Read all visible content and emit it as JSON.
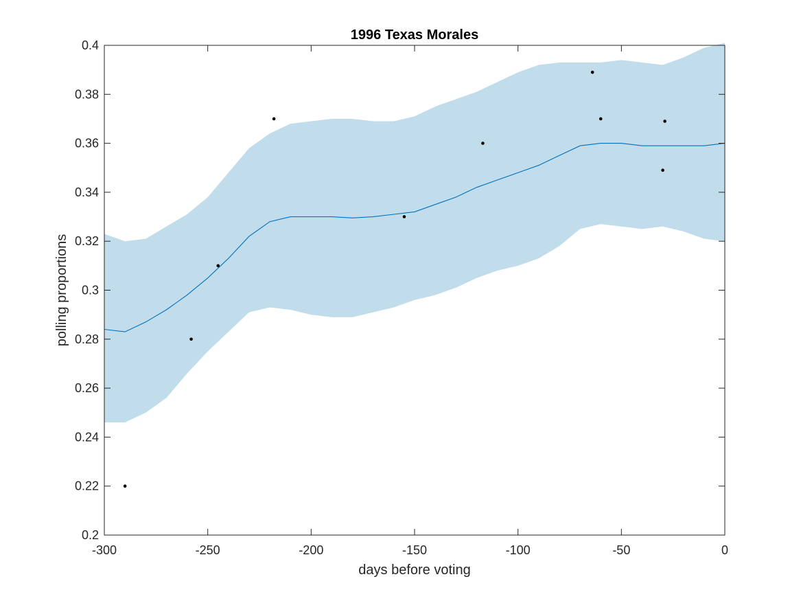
{
  "chart_data": {
    "type": "line",
    "title": "1996 Texas Morales",
    "xlabel": "days before voting",
    "ylabel": "polling proportions",
    "xlim": [
      -300,
      0
    ],
    "ylim": [
      0.2,
      0.4
    ],
    "x_ticks": [
      -300,
      -250,
      -200,
      -150,
      -100,
      -50,
      0
    ],
    "x_tick_labels": [
      "-300",
      "-250",
      "-200",
      "-150",
      "-100",
      "-50",
      "0"
    ],
    "y_ticks": [
      0.2,
      0.22,
      0.24,
      0.26,
      0.28,
      0.3,
      0.32,
      0.34,
      0.36,
      0.38,
      0.4
    ],
    "y_tick_labels": [
      "0.2",
      "0.22",
      "0.24",
      "0.26",
      "0.28",
      "0.3",
      "0.32",
      "0.34",
      "0.36",
      "0.38",
      "0.4"
    ],
    "grid": false,
    "band": {
      "x": [
        -300,
        -290,
        -280,
        -270,
        -260,
        -250,
        -240,
        -230,
        -220,
        -210,
        -200,
        -190,
        -180,
        -170,
        -160,
        -150,
        -140,
        -130,
        -120,
        -110,
        -100,
        -90,
        -80,
        -70,
        -60,
        -50,
        -40,
        -30,
        -20,
        -10,
        0
      ],
      "upper": [
        0.323,
        0.32,
        0.321,
        0.326,
        0.331,
        0.338,
        0.348,
        0.358,
        0.364,
        0.368,
        0.369,
        0.37,
        0.37,
        0.369,
        0.369,
        0.371,
        0.375,
        0.378,
        0.381,
        0.385,
        0.389,
        0.392,
        0.393,
        0.393,
        0.393,
        0.394,
        0.393,
        0.392,
        0.395,
        0.399,
        0.401
      ],
      "lower": [
        0.246,
        0.246,
        0.25,
        0.256,
        0.266,
        0.275,
        0.283,
        0.291,
        0.293,
        0.292,
        0.29,
        0.289,
        0.289,
        0.291,
        0.293,
        0.296,
        0.298,
        0.301,
        0.305,
        0.308,
        0.31,
        0.313,
        0.318,
        0.325,
        0.327,
        0.326,
        0.325,
        0.326,
        0.324,
        0.321,
        0.32
      ],
      "color": "#c1dcea"
    },
    "series": [
      {
        "type": "line",
        "color": "#0072bd",
        "x": [
          -300,
          -290,
          -280,
          -270,
          -260,
          -250,
          -240,
          -230,
          -220,
          -210,
          -200,
          -190,
          -180,
          -170,
          -160,
          -150,
          -140,
          -130,
          -120,
          -110,
          -100,
          -90,
          -80,
          -70,
          -60,
          -50,
          -40,
          -30,
          -20,
          -10,
          0
        ],
        "values": [
          0.284,
          0.283,
          0.287,
          0.292,
          0.298,
          0.305,
          0.313,
          0.322,
          0.328,
          0.33,
          0.33,
          0.33,
          0.3295,
          0.33,
          0.331,
          0.332,
          0.335,
          0.338,
          0.342,
          0.345,
          0.348,
          0.351,
          0.355,
          0.359,
          0.36,
          0.36,
          0.359,
          0.359,
          0.359,
          0.359,
          0.36
        ]
      },
      {
        "type": "scatter",
        "color": "#000000",
        "x": [
          -290,
          -258,
          -245,
          -218,
          -155,
          -117,
          -64,
          -60,
          -30,
          -29
        ],
        "values": [
          0.22,
          0.28,
          0.31,
          0.37,
          0.33,
          0.36,
          0.389,
          0.37,
          0.349,
          0.369
        ]
      }
    ]
  }
}
